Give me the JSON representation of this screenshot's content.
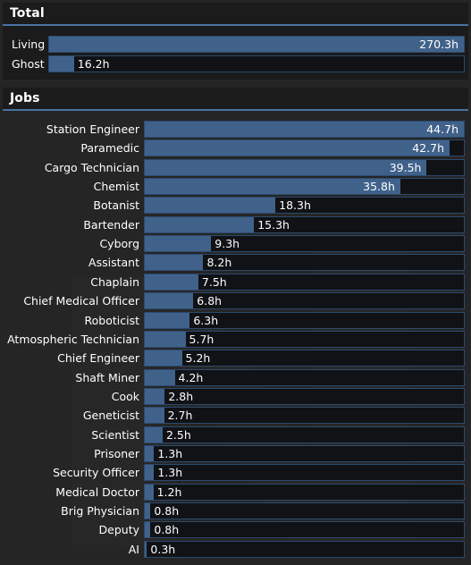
{
  "total": {
    "title": "Total",
    "rows": [
      {
        "label": "Living",
        "value": "270.3h",
        "hours": 270.3
      },
      {
        "label": "Ghost",
        "value": "16.2h",
        "hours": 16.2
      }
    ]
  },
  "jobs": {
    "title": "Jobs",
    "rows": [
      {
        "label": "Station Engineer",
        "value": "44.7h",
        "hours": 44.7
      },
      {
        "label": "Paramedic",
        "value": "42.7h",
        "hours": 42.7
      },
      {
        "label": "Cargo Technician",
        "value": "39.5h",
        "hours": 39.5
      },
      {
        "label": "Chemist",
        "value": "35.8h",
        "hours": 35.8
      },
      {
        "label": "Botanist",
        "value": "18.3h",
        "hours": 18.3
      },
      {
        "label": "Bartender",
        "value": "15.3h",
        "hours": 15.3
      },
      {
        "label": "Cyborg",
        "value": "9.3h",
        "hours": 9.3
      },
      {
        "label": "Assistant",
        "value": "8.2h",
        "hours": 8.2
      },
      {
        "label": "Chaplain",
        "value": "7.5h",
        "hours": 7.5
      },
      {
        "label": "Chief Medical Officer",
        "value": "6.8h",
        "hours": 6.8
      },
      {
        "label": "Roboticist",
        "value": "6.3h",
        "hours": 6.3
      },
      {
        "label": "Atmospheric Technician",
        "value": "5.7h",
        "hours": 5.7
      },
      {
        "label": "Chief Engineer",
        "value": "5.2h",
        "hours": 5.2
      },
      {
        "label": "Shaft Miner",
        "value": "4.2h",
        "hours": 4.2
      },
      {
        "label": "Cook",
        "value": "2.8h",
        "hours": 2.8
      },
      {
        "label": "Geneticist",
        "value": "2.7h",
        "hours": 2.7
      },
      {
        "label": "Scientist",
        "value": "2.5h",
        "hours": 2.5
      },
      {
        "label": "Prisoner",
        "value": "1.3h",
        "hours": 1.3
      },
      {
        "label": "Security Officer",
        "value": "1.3h",
        "hours": 1.3
      },
      {
        "label": "Medical Doctor",
        "value": "1.2h",
        "hours": 1.2
      },
      {
        "label": "Brig Physician",
        "value": "0.8h",
        "hours": 0.8
      },
      {
        "label": "Deputy",
        "value": "0.8h",
        "hours": 0.8
      },
      {
        "label": "AI",
        "value": "0.3h",
        "hours": 0.3
      }
    ]
  },
  "colors": {
    "panel_bg": "#1b1b1b",
    "window_bg": "#252525",
    "bar_fill": "#40628a",
    "track_bg": "#111215",
    "track_border": "#2c4a6f",
    "header_rule": "#4972a1"
  },
  "icons": {
    "watermark": "nanotrasen-logo-watermark"
  }
}
